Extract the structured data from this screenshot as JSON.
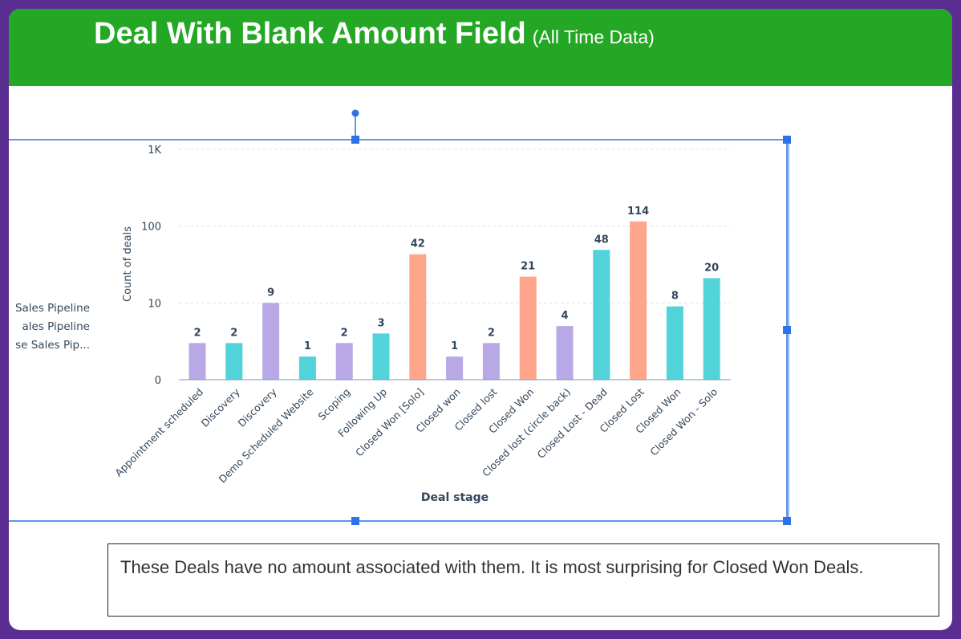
{
  "slide": {
    "title": "Deal With Blank Amount Field",
    "subtitle": "(All Time Data)",
    "caption": "These Deals have no amount associated with them. It is most surprising for Closed Won Deals."
  },
  "legend": {
    "items": [
      "Sales Pipeline",
      "ales Pipeline",
      "se Sales Pip..."
    ]
  },
  "colors": {
    "header_bg": "#23a725",
    "frame": "#5a2d91",
    "purple": "#b9a8e6",
    "teal": "#51d3d9",
    "salmon": "#ffa58c",
    "selection": "#2f72e6"
  },
  "chart_data": {
    "type": "bar",
    "xlabel": "Deal stage",
    "ylabel": "Count of deals",
    "yscale": "log",
    "yticks": [
      "0",
      "10",
      "100",
      "1K"
    ],
    "grid": true,
    "categories": [
      "Appointment scheduled",
      "Discovery",
      "Discovery",
      "Demo Scheduled Website",
      "Scoping",
      "Following Up",
      "Closed Won [Solo]",
      "Closed won",
      "Closed lost",
      "Closed Won",
      "Closed lost (circle back)",
      "Closed Lost - Dead",
      "Closed Lost",
      "Closed Won",
      "Closed Won - Solo"
    ],
    "values": [
      2,
      2,
      9,
      1,
      2,
      3,
      42,
      1,
      2,
      21,
      4,
      48,
      114,
      8,
      20
    ],
    "bar_colors": [
      "purple",
      "teal",
      "purple",
      "teal",
      "purple",
      "teal",
      "salmon",
      "purple",
      "purple",
      "salmon",
      "purple",
      "teal",
      "salmon",
      "teal",
      "teal"
    ]
  }
}
